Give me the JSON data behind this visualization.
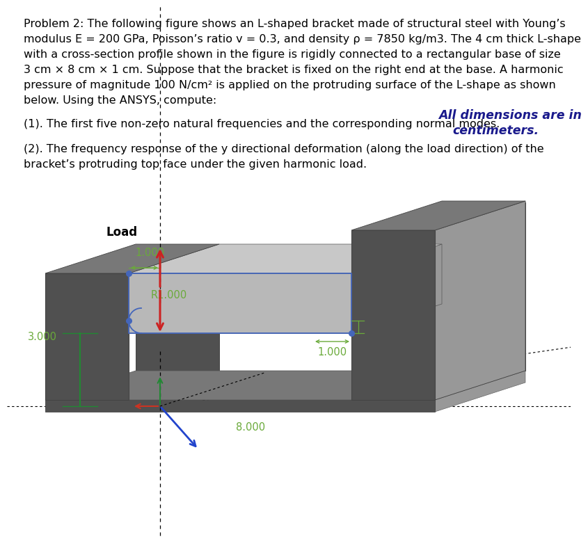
{
  "title_line1": "Problem 2: The following figure shows an L-shaped bracket made of structural steel with Young’s",
  "title_line2": "modulus E = 200 GPa, Poisson’s ratio v = 0.3, and density ρ = 7850 kg/m3. The 4 cm thick L-shape",
  "title_line3": "with a cross-section profile shown in the figure is rigidly connected to a rectangular base of size",
  "title_line4": "3 cm × 8 cm × 1 cm. Suppose that the bracket is fixed on the right end at the base. A harmonic",
  "title_line5": "pressure of magnitude 100 N/cm² is applied on the protruding surface of the L-shape as shown",
  "title_line6": "below. Using the ANSYS, compute:",
  "point1_text": "(1). The first five non-zero natural frequencies and the corresponding normal modes.",
  "point2_line1": "(2). The frequency response of the y directional deformation (along the load direction) of the",
  "point2_line2": "bracket’s protruding top face under the given harmonic load.",
  "load_label": "Load",
  "dim_note_line1": "All dimensions are in",
  "dim_note_line2": "centimeters.",
  "dim_1000_top": "1.000",
  "dim_r1000": "R1.000",
  "dim_1000_bot": "1.000",
  "dim_3000": "3.000",
  "dim_8000": "8.000",
  "bg_color": "#ffffff",
  "text_color": "#000000",
  "dim_color": "#6aaa3a",
  "c_dark": "#505050",
  "c_mid": "#787878",
  "c_light": "#989898",
  "c_lighter": "#b8b8b8",
  "c_top": "#c8c8c8",
  "axis_green": "#228833",
  "load_arrow_color": "#cc2222",
  "blue_outline": "#4466bb",
  "coord_blue": "#2244cc",
  "coord_red": "#cc3322",
  "note_color": "#1a1a8c"
}
